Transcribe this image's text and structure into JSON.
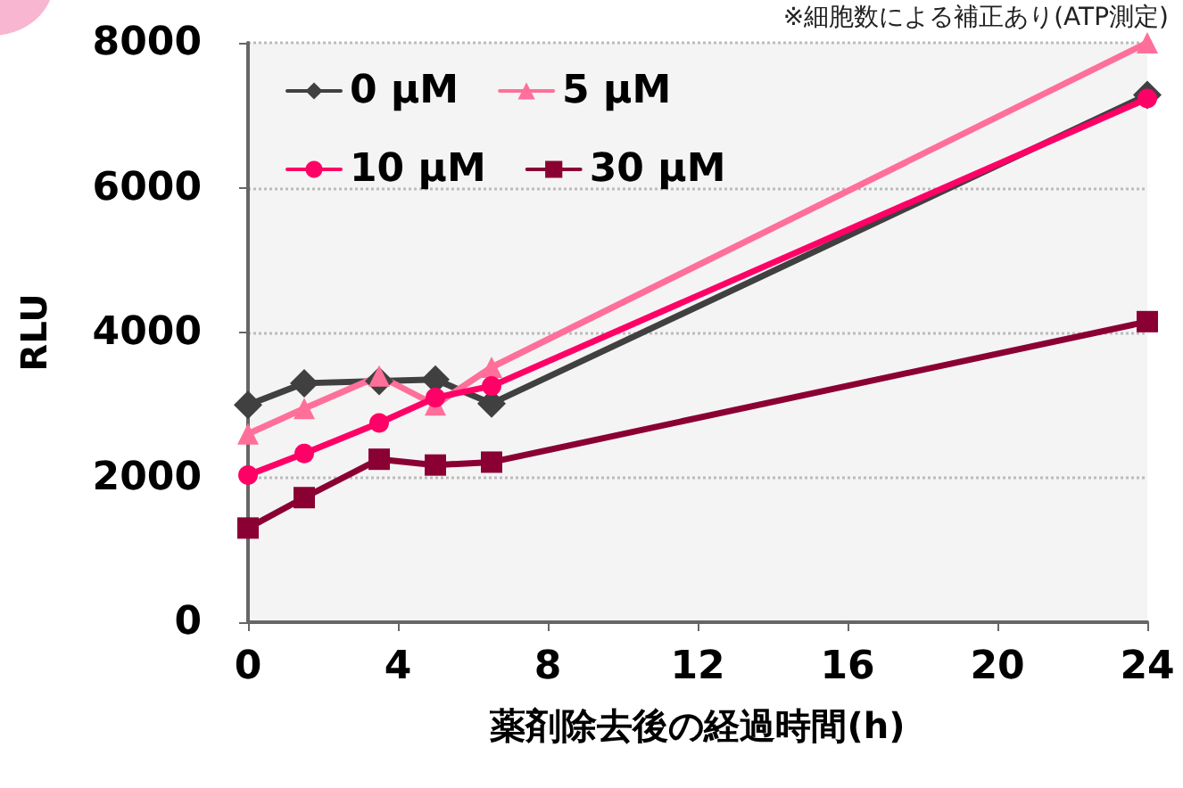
{
  "chart_data": {
    "type": "line",
    "xlabel": "薬剤除去後の経過時間(h)",
    "ylabel": "RLU",
    "annotations": [
      "※細胞数による補正あり(ATP測定)"
    ],
    "x": [
      0,
      1.5,
      3.5,
      5,
      6.5,
      24
    ],
    "series": [
      {
        "name": "0 µM",
        "color": "#404040",
        "marker": "diamond",
        "values": [
          3000,
          3300,
          3330,
          3350,
          3020,
          7280
        ]
      },
      {
        "name": "5 µM",
        "color": "#ff6f9a",
        "marker": "triangle",
        "values": [
          2600,
          2950,
          3400,
          3000,
          3520,
          8000
        ]
      },
      {
        "name": "10 µM",
        "color": "#ff0066",
        "marker": "circle",
        "values": [
          2030,
          2330,
          2750,
          3100,
          3260,
          7230
        ]
      },
      {
        "name": "30 µM",
        "color": "#8b0033",
        "marker": "square",
        "values": [
          1300,
          1720,
          2250,
          2170,
          2210,
          4150
        ]
      }
    ],
    "xlim": [
      0,
      24
    ],
    "xticks": [
      0,
      4,
      8,
      12,
      16,
      20,
      24
    ],
    "ylim": [
      0,
      8000
    ],
    "yticks": [
      0,
      2000,
      4000,
      6000,
      8000
    ],
    "grid": "y",
    "legend": "top left",
    "line_style": "solid"
  }
}
